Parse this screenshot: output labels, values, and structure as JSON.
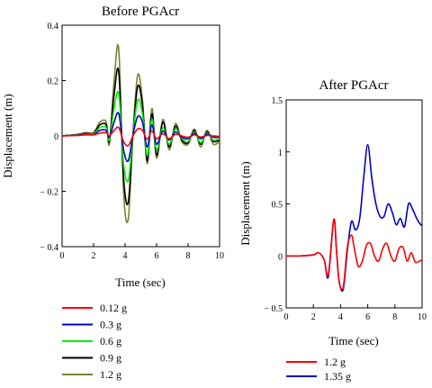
{
  "chart_data": [
    {
      "type": "line",
      "title": "Before PGAcr",
      "xlabel": "Time (sec)",
      "ylabel": "Displacement (m)",
      "xlim": [
        0,
        10
      ],
      "ylim": [
        -0.4,
        0.4
      ],
      "x_ticks": [
        "0",
        "2",
        "4",
        "6",
        "8",
        "10"
      ],
      "y_ticks": [
        "0.4",
        "0.2",
        "0",
        "− 0.2",
        "− 0.4"
      ],
      "x": [
        0,
        1,
        1.5,
        2,
        2.4,
        2.8,
        3.0,
        3.3,
        3.6,
        3.9,
        4.2,
        4.5,
        4.8,
        5.1,
        5.4,
        5.7,
        6.0,
        6.4,
        6.8,
        7.2,
        7.6,
        8.0,
        8.4,
        8.8,
        9.2,
        9.6,
        10
      ],
      "series": [
        {
          "name": "0.12 g",
          "color": "#ff0000",
          "values": [
            0,
            0.002,
            0.004,
            0.004,
            0.01,
            0.012,
            0,
            0.02,
            0.03,
            -0.02,
            -0.035,
            0,
            0.025,
            0.02,
            -0.012,
            0.018,
            -0.01,
            0.008,
            -0.01,
            0.006,
            0,
            -0.005,
            0.004,
            -0.004,
            0.002,
            0,
            -0.002
          ]
        },
        {
          "name": "0.3 g",
          "color": "#0000cc",
          "values": [
            0,
            0.003,
            0.006,
            0.005,
            0.02,
            0.02,
            -0.005,
            0.05,
            0.08,
            -0.05,
            -0.09,
            0.005,
            0.07,
            0.05,
            -0.04,
            0.04,
            -0.03,
            0.018,
            -0.015,
            0.015,
            -0.005,
            -0.01,
            0.01,
            -0.01,
            0.006,
            -0.005,
            -0.004
          ]
        },
        {
          "name": "0.6 g",
          "color": "#00ee00",
          "values": [
            0,
            0.004,
            0.008,
            0.008,
            0.03,
            0.03,
            -0.015,
            0.1,
            0.15,
            -0.1,
            -0.16,
            0.005,
            0.13,
            0.08,
            -0.07,
            0.06,
            -0.05,
            0.03,
            -0.03,
            0.025,
            -0.01,
            -0.02,
            0.015,
            -0.025,
            0.01,
            -0.015,
            -0.01
          ]
        },
        {
          "name": "0.9 g",
          "color": "#000000",
          "values": [
            0,
            0.005,
            0.01,
            0.01,
            0.04,
            0.04,
            -0.02,
            0.15,
            0.23,
            -0.15,
            -0.24,
            0.005,
            0.18,
            0.11,
            -0.09,
            0.08,
            -0.07,
            0.05,
            -0.04,
            0.035,
            -0.015,
            -0.025,
            0.02,
            -0.03,
            0.015,
            -0.02,
            -0.015
          ]
        },
        {
          "name": "1.2 g",
          "color": "#808033",
          "values": [
            0,
            0.006,
            0.012,
            0.012,
            0.05,
            0.05,
            -0.03,
            0.2,
            0.31,
            -0.2,
            -0.3,
            0.01,
            0.22,
            0.13,
            -0.1,
            0.1,
            -0.08,
            0.06,
            -0.05,
            0.045,
            -0.02,
            -0.03,
            0.025,
            -0.04,
            0.02,
            -0.03,
            -0.02
          ]
        }
      ]
    },
    {
      "type": "line",
      "title": "After PGAcr",
      "xlabel": "Time (sec)",
      "ylabel": "Displacement (m)",
      "xlim": [
        0,
        10
      ],
      "ylim": [
        -0.5,
        1.5
      ],
      "x_ticks": [
        "0",
        "2",
        "4",
        "6",
        "8",
        "10"
      ],
      "y_ticks": [
        "1.5",
        "1",
        "0.5",
        "0",
        "− 0.5"
      ],
      "series": [
        {
          "name": "1.2 g",
          "color": "#ff0000",
          "x": [
            0,
            1,
            2,
            2.4,
            2.8,
            3.1,
            3.5,
            3.7,
            3.9,
            4.2,
            4.5,
            4.8,
            5.0,
            5.3,
            5.6,
            5.9,
            6.2,
            6.5,
            6.8,
            7.1,
            7.4,
            7.7,
            8.0,
            8.3,
            8.6,
            8.9,
            9.2,
            9.5,
            9.8,
            10
          ],
          "values": [
            0,
            0,
            0.01,
            0.03,
            -0.04,
            -0.18,
            0.35,
            0.05,
            -0.25,
            -0.3,
            0.08,
            0.2,
            0.08,
            -0.1,
            -0.05,
            0.1,
            0.12,
            0.0,
            -0.05,
            0.07,
            0.12,
            0.0,
            -0.05,
            0.07,
            0.08,
            -0.05,
            0.03,
            -0.06,
            -0.05,
            -0.04
          ]
        },
        {
          "name": "1.35 g",
          "color": "#0000cc",
          "x": [
            0,
            1,
            2,
            2.4,
            2.8,
            3.1,
            3.5,
            3.7,
            3.9,
            4.2,
            4.5,
            4.8,
            5.1,
            5.4,
            5.7,
            6.0,
            6.3,
            6.6,
            6.9,
            7.2,
            7.5,
            7.8,
            8.1,
            8.4,
            8.7,
            9.0,
            9.3,
            9.6,
            9.9,
            10
          ],
          "values": [
            0,
            0,
            0.01,
            0.03,
            -0.04,
            -0.2,
            0.35,
            0.05,
            -0.25,
            -0.32,
            0.05,
            0.33,
            0.25,
            0.35,
            0.75,
            1.07,
            0.75,
            0.5,
            0.38,
            0.38,
            0.5,
            0.42,
            0.3,
            0.36,
            0.28,
            0.5,
            0.45,
            0.36,
            0.3,
            0.3
          ]
        }
      ]
    }
  ]
}
